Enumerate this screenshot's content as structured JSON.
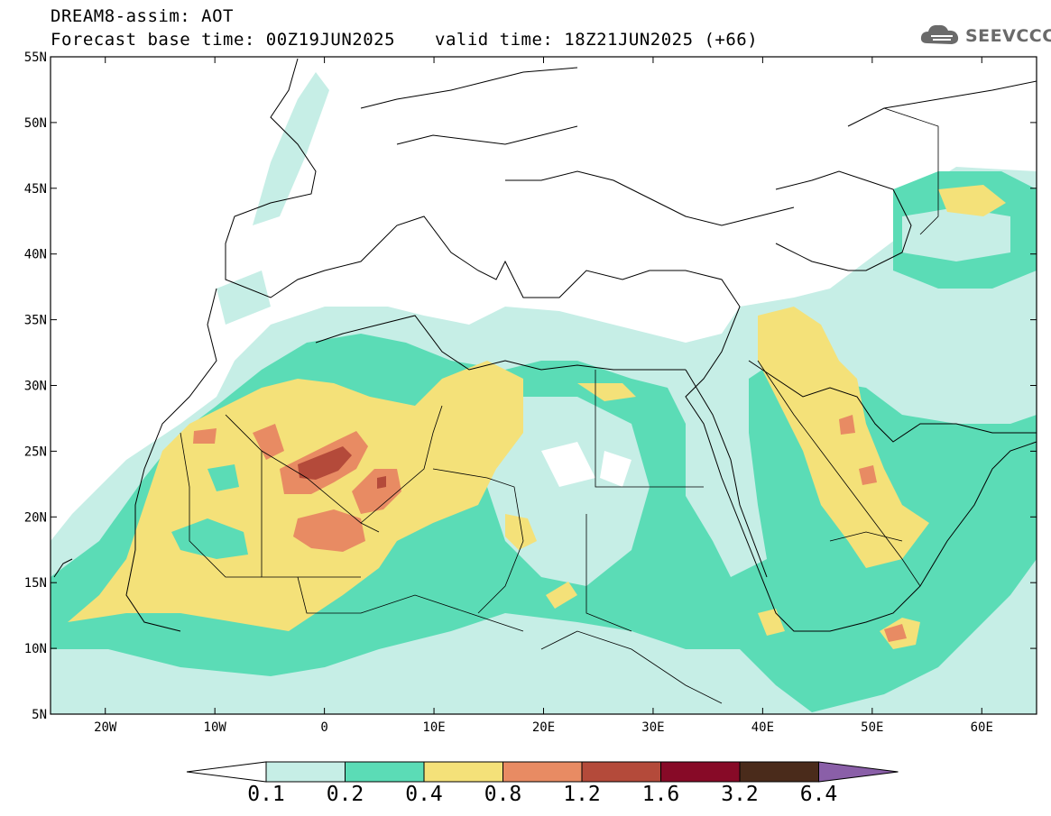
{
  "title": {
    "line1": "DREAM8-assim: AOT",
    "line2": "Forecast base time: 00Z19JUN2025",
    "valid": "valid time: 18Z21JUN2025 (+66)"
  },
  "logo": {
    "text": "SEEVCCC",
    "icon": "cloud-icon"
  },
  "map": {
    "lon_range": [
      -25,
      65
    ],
    "lat_range": [
      5,
      55
    ],
    "x_ticks": [
      "20W",
      "10W",
      "0",
      "10E",
      "20E",
      "30E",
      "40E",
      "50E",
      "60E"
    ],
    "y_ticks": [
      "55N",
      "50N",
      "45N",
      "40N",
      "35N",
      "30N",
      "25N",
      "20N",
      "15N",
      "10N",
      "5N"
    ],
    "field": "Aerosol Optical Thickness"
  },
  "colorbar": {
    "levels": [
      "0.1",
      "0.2",
      "0.4",
      "0.8",
      "1.2",
      "1.6",
      "3.2",
      "6.4"
    ],
    "colors": [
      "#c6eee6",
      "#5bdcb6",
      "#f4e179",
      "#e88b63",
      "#b44a3a",
      "#870a27",
      "#4a2b1b",
      "#8a5fa8"
    ]
  }
}
